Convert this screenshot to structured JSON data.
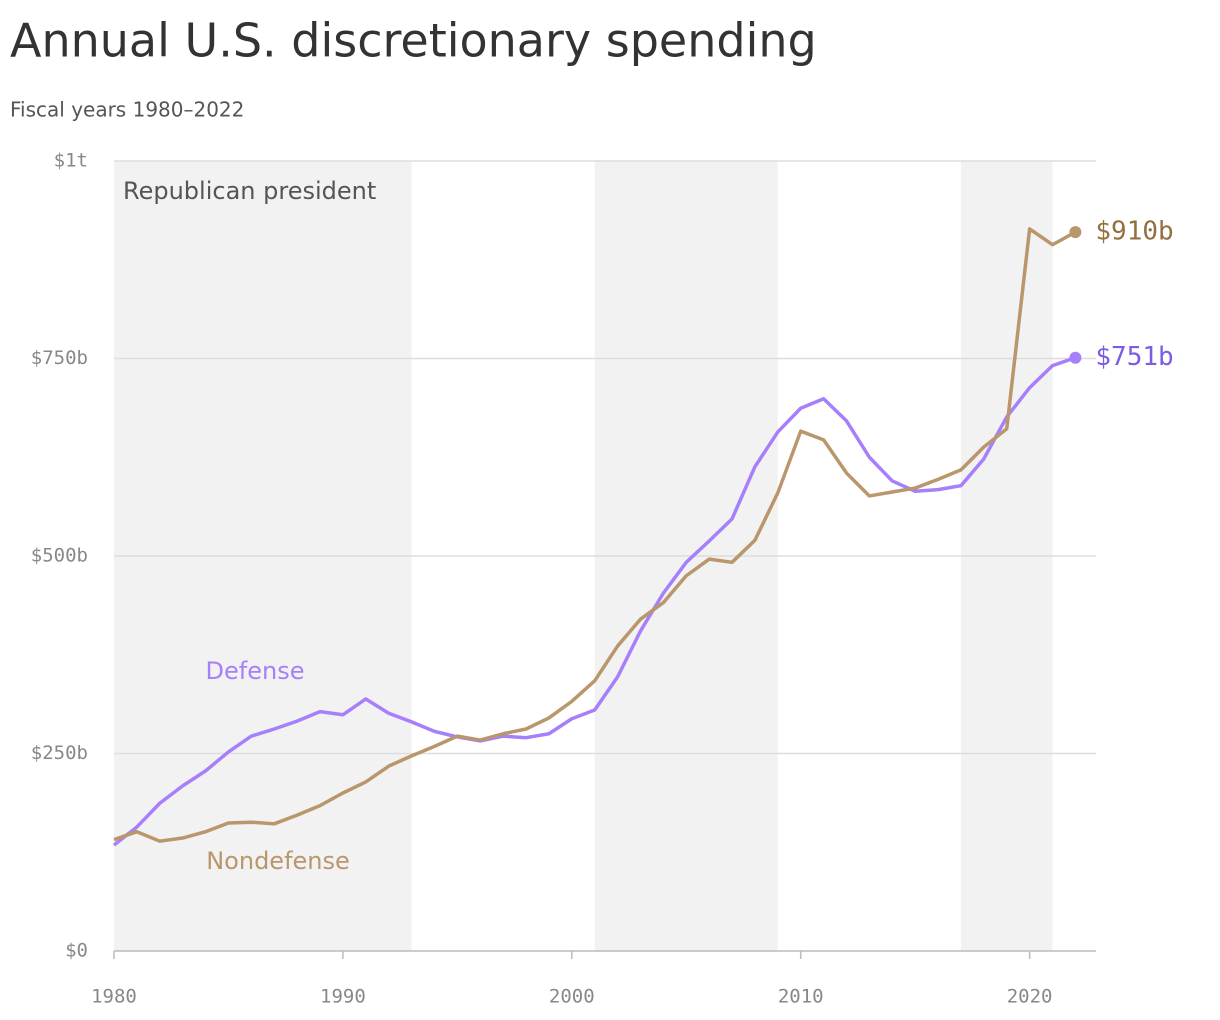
{
  "chart_data": {
    "type": "line",
    "title": "Annual U.S. discretionary spending",
    "subtitle": "Fiscal years 1980–2022",
    "x": [
      1980,
      1981,
      1982,
      1983,
      1984,
      1985,
      1986,
      1987,
      1988,
      1989,
      1990,
      1991,
      1992,
      1993,
      1994,
      1995,
      1996,
      1997,
      1998,
      1999,
      2000,
      2001,
      2002,
      2003,
      2004,
      2005,
      2006,
      2007,
      2008,
      2009,
      2010,
      2011,
      2012,
      2013,
      2014,
      2015,
      2016,
      2017,
      2018,
      2019,
      2020,
      2021,
      2022
    ],
    "series": [
      {
        "name": "Defense",
        "color": "#a680fb",
        "label_color": "#7c5ce6",
        "values": [
          134,
          157,
          187,
          209,
          228,
          252,
          272,
          281,
          291,
          303,
          299,
          319,
          301,
          290,
          278,
          271,
          266,
          272,
          270,
          275,
          294,
          305,
          347,
          405,
          453,
          492,
          519,
          547,
          613,
          657,
          687,
          699,
          671,
          625,
          595,
          582,
          584,
          589,
          623,
          676,
          713,
          741,
          751
        ],
        "value_labels": [
          null,
          null,
          null,
          null,
          null,
          null,
          null,
          null,
          null,
          null,
          null,
          null,
          null,
          null,
          null,
          null,
          null,
          null,
          null,
          null,
          null,
          null,
          null,
          null,
          null,
          null,
          null,
          null,
          null,
          null,
          null,
          null,
          null,
          null,
          null,
          null,
          null,
          null,
          null,
          null,
          null,
          null,
          "$751b"
        ]
      },
      {
        "name": "Nondefense",
        "color": "#b9966b",
        "label_color": "#93703f",
        "values": [
          141,
          151,
          139,
          143,
          151,
          162,
          163,
          161,
          172,
          184,
          200,
          214,
          234,
          247,
          259,
          272,
          267,
          275,
          281,
          295,
          316,
          342,
          386,
          420,
          441,
          475,
          496,
          492,
          520,
          580,
          658,
          647,
          605,
          576,
          581,
          586,
          597,
          609,
          638,
          661,
          914,
          894,
          910
        ],
        "value_labels": [
          null,
          null,
          null,
          null,
          null,
          null,
          null,
          null,
          null,
          null,
          null,
          null,
          null,
          null,
          null,
          null,
          null,
          null,
          null,
          null,
          null,
          null,
          null,
          null,
          null,
          null,
          null,
          null,
          null,
          null,
          null,
          null,
          null,
          null,
          null,
          null,
          null,
          null,
          null,
          null,
          null,
          null,
          "$910b"
        ]
      }
    ],
    "shaded_periods": {
      "label": "Republican president",
      "ranges": [
        [
          1980,
          1993
        ],
        [
          2001,
          2009
        ],
        [
          2017,
          2021
        ]
      ]
    },
    "xlim": [
      1980,
      2022.9
    ],
    "xticks": [
      1980,
      1990,
      2000,
      2010,
      2020
    ],
    "ylim": [
      0,
      1000
    ],
    "yticks": [
      {
        "value": 0,
        "label": "$0"
      },
      {
        "value": 250,
        "label": "$250b"
      },
      {
        "value": 500,
        "label": "$500b"
      },
      {
        "value": 750,
        "label": "$750b"
      },
      {
        "value": 1000,
        "label": "$1t"
      }
    ],
    "grid": true
  }
}
